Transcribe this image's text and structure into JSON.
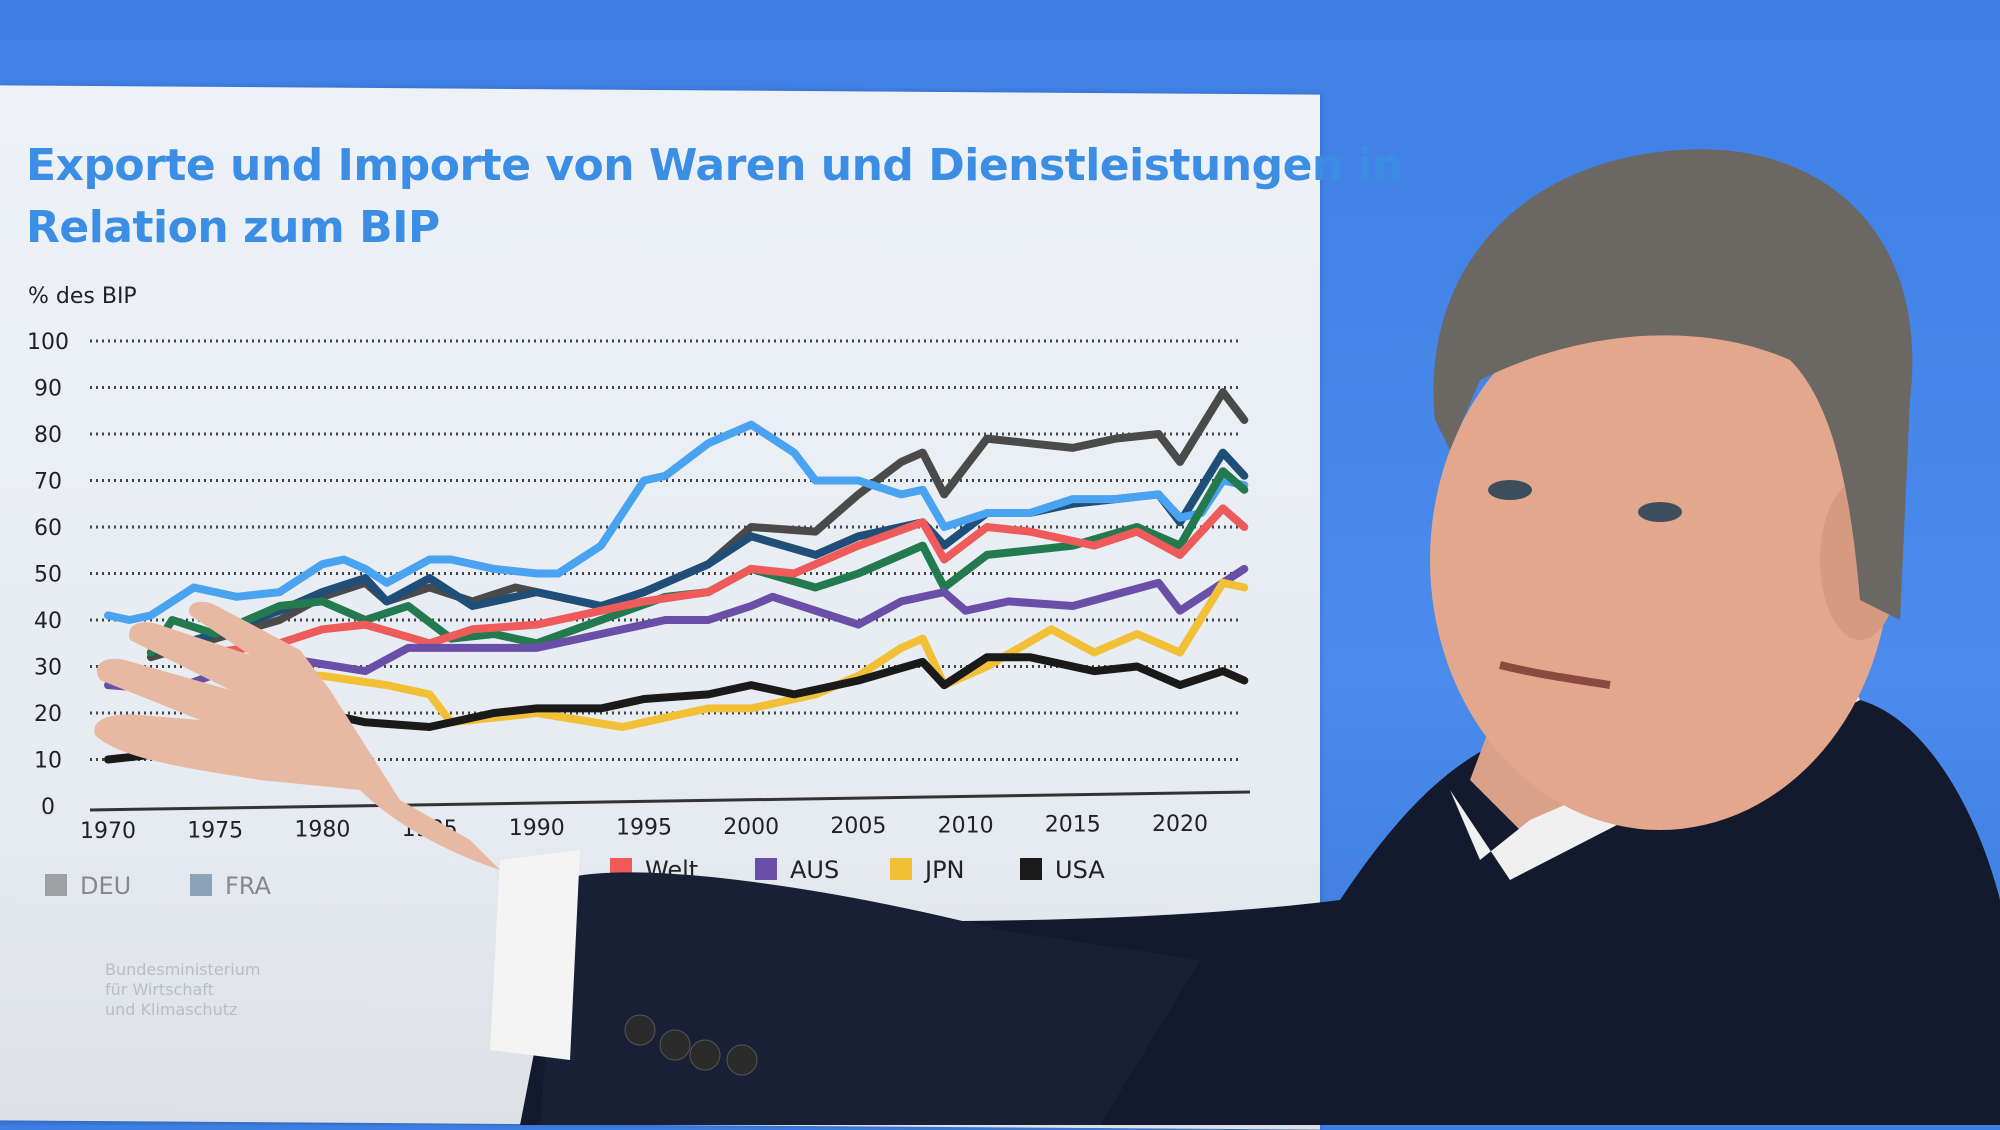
{
  "chart_data": {
    "type": "line",
    "title": "Exporte und Importe von Waren und Dienstleistungen in Relation zum BIP",
    "title_lines": [
      "Exporte und Importe von Waren und Dienstleistungen in",
      "Relation zum BIP"
    ],
    "ylabel": "% des BIP",
    "xlabel": "",
    "ylim": [
      0,
      100
    ],
    "xlim": [
      1970,
      2023
    ],
    "yticks": [
      0,
      10,
      20,
      30,
      40,
      50,
      60,
      70,
      80,
      90,
      100
    ],
    "xticks": [
      "1970",
      "1975",
      "1980",
      "1985",
      "1990",
      "1995",
      "2000",
      "2005",
      "2010",
      "2015",
      "2020"
    ],
    "grid": "horizontal dotted",
    "legend_placement": "bottom",
    "legend": [
      {
        "name": "DEU",
        "color": "#4a4a4a"
      },
      {
        "name": "FRA",
        "color": "#1f4e79"
      },
      {
        "name": "Welt",
        "color": "#ef5a5a"
      },
      {
        "name": "AUS",
        "color": "#6a4fa8"
      },
      {
        "name": "JPN",
        "color": "#f2c037"
      },
      {
        "name": "USA",
        "color": "#1a1a1a"
      }
    ],
    "series": [
      {
        "name": "DEU",
        "color": "#4a4a4a",
        "x": [
          1972,
          1975,
          1978,
          1980,
          1982,
          1983,
          1985,
          1987,
          1989,
          1990,
          1993,
          1995,
          1998,
          2000,
          2003,
          2005,
          2007,
          2008,
          2009,
          2011,
          2013,
          2015,
          2017,
          2019,
          2020,
          2022,
          2023
        ],
        "y": [
          32,
          36,
          40,
          45,
          48,
          44,
          47,
          44,
          47,
          46,
          43,
          46,
          52,
          60,
          59,
          67,
          74,
          76,
          67,
          79,
          78,
          77,
          79,
          80,
          74,
          89,
          83
        ]
      },
      {
        "name": "FRA",
        "color": "#1f4e79",
        "x": [
          1972,
          1975,
          1978,
          1980,
          1982,
          1983,
          1985,
          1987,
          1990,
          1993,
          1995,
          1998,
          2000,
          2003,
          2005,
          2008,
          2009,
          2011,
          2013,
          2015,
          2017,
          2019,
          2020,
          2022,
          2023
        ],
        "y": [
          33,
          37,
          42,
          46,
          49,
          44,
          49,
          43,
          46,
          43,
          46,
          52,
          58,
          54,
          58,
          61,
          56,
          63,
          63,
          65,
          66,
          67,
          61,
          76,
          71
        ]
      },
      {
        "name": "",
        "color": "#4aa3f0",
        "x": [
          1970,
          1971,
          1972,
          1974,
          1976,
          1978,
          1980,
          1981,
          1982,
          1983,
          1985,
          1986,
          1988,
          1990,
          1991,
          1993,
          1995,
          1996,
          1998,
          2000,
          2002,
          2003,
          2005,
          2007,
          2008,
          2009,
          2011,
          2013,
          2015,
          2017,
          2019,
          2020,
          2021,
          2022,
          2023
        ],
        "y": [
          41,
          40,
          41,
          47,
          45,
          46,
          52,
          53,
          51,
          48,
          53,
          53,
          51,
          50,
          50,
          56,
          70,
          71,
          78,
          82,
          76,
          70,
          70,
          67,
          68,
          60,
          63,
          63,
          66,
          66,
          67,
          62,
          63,
          70,
          69
        ]
      },
      {
        "name": "",
        "color": "#237a4f",
        "x": [
          1972,
          1973,
          1975,
          1978,
          1980,
          1982,
          1984,
          1986,
          1988,
          1990,
          1993,
          1996,
          1998,
          2000,
          2003,
          2005,
          2008,
          2009,
          2011,
          2013,
          2015,
          2018,
          2020,
          2022,
          2023
        ],
        "y": [
          33,
          40,
          37,
          43,
          44,
          40,
          43,
          36,
          37,
          35,
          40,
          45,
          46,
          51,
          47,
          50,
          56,
          47,
          54,
          55,
          56,
          60,
          56,
          72,
          68
        ]
      },
      {
        "name": "Welt",
        "color": "#ef5a5a",
        "x": [
          1975,
          1978,
          1980,
          1982,
          1985,
          1987,
          1990,
          1993,
          1995,
          1998,
          2000,
          2002,
          2005,
          2008,
          2009,
          2011,
          2013,
          2016,
          2018,
          2020,
          2022,
          2023
        ],
        "y": [
          33,
          35,
          38,
          39,
          35,
          38,
          39,
          42,
          44,
          46,
          51,
          50,
          56,
          61,
          53,
          60,
          59,
          56,
          59,
          54,
          64,
          60
        ]
      },
      {
        "name": "AUS",
        "color": "#6a4fa8",
        "x": [
          1970,
          1973,
          1976,
          1978,
          1982,
          1984,
          1990,
          1993,
          1996,
          1998,
          2000,
          2001,
          2003,
          2005,
          2007,
          2009,
          2010,
          2012,
          2015,
          2019,
          2020,
          2023
        ],
        "y": [
          26,
          25,
          30,
          32,
          29,
          34,
          34,
          37,
          40,
          40,
          43,
          45,
          42,
          39,
          44,
          46,
          42,
          44,
          43,
          48,
          42,
          51
        ]
      },
      {
        "name": "JPN",
        "color": "#f2c037",
        "x": [
          1978,
          1980,
          1983,
          1985,
          1986,
          1988,
          1990,
          1994,
          1996,
          1998,
          2000,
          2003,
          2005,
          2007,
          2008,
          2009,
          2011,
          2014,
          2016,
          2018,
          2020,
          2022,
          2023
        ],
        "y": [
          28,
          28,
          26,
          24,
          18,
          19,
          20,
          17,
          19,
          21,
          21,
          24,
          28,
          34,
          36,
          26,
          30,
          38,
          33,
          37,
          33,
          48,
          47
        ]
      },
      {
        "name": "USA",
        "color": "#1a1a1a",
        "x": [
          1970,
          1972,
          1975,
          1978,
          1980,
          1982,
          1985,
          1988,
          1990,
          1993,
          1995,
          1998,
          2000,
          2002,
          2005,
          2008,
          2009,
          2011,
          2013,
          2016,
          2018,
          2020,
          2022,
          2023
        ],
        "y": [
          10,
          11,
          15,
          18,
          20,
          18,
          17,
          20,
          21,
          21,
          23,
          24,
          26,
          24,
          27,
          31,
          26,
          32,
          32,
          29,
          30,
          26,
          29,
          27
        ]
      }
    ]
  },
  "board": {
    "footer_lines": [
      "Bundesministerium",
      "für Wirtschaft",
      "und Klimaschutz"
    ]
  }
}
